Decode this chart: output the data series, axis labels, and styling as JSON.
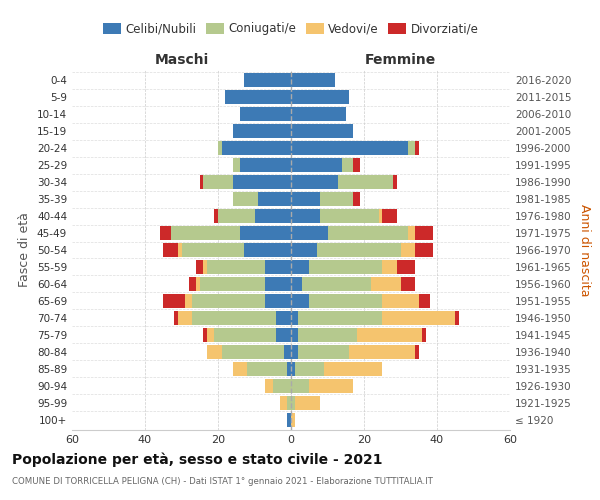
{
  "age_groups": [
    "100+",
    "95-99",
    "90-94",
    "85-89",
    "80-84",
    "75-79",
    "70-74",
    "65-69",
    "60-64",
    "55-59",
    "50-54",
    "45-49",
    "40-44",
    "35-39",
    "30-34",
    "25-29",
    "20-24",
    "15-19",
    "10-14",
    "5-9",
    "0-4"
  ],
  "birth_years": [
    "≤ 1920",
    "1921-1925",
    "1926-1930",
    "1931-1935",
    "1936-1940",
    "1941-1945",
    "1946-1950",
    "1951-1955",
    "1956-1960",
    "1961-1965",
    "1966-1970",
    "1971-1975",
    "1976-1980",
    "1981-1985",
    "1986-1990",
    "1991-1995",
    "1996-2000",
    "2001-2005",
    "2006-2010",
    "2011-2015",
    "2016-2020"
  ],
  "males": {
    "celibi": [
      1,
      0,
      0,
      1,
      2,
      4,
      4,
      7,
      7,
      7,
      13,
      14,
      10,
      9,
      16,
      14,
      19,
      16,
      14,
      18,
      13
    ],
    "coniugati": [
      0,
      1,
      5,
      11,
      17,
      17,
      23,
      20,
      18,
      16,
      17,
      19,
      10,
      7,
      8,
      2,
      1,
      0,
      0,
      0,
      0
    ],
    "vedovi": [
      0,
      2,
      2,
      4,
      4,
      2,
      4,
      2,
      1,
      1,
      1,
      0,
      0,
      0,
      0,
      0,
      0,
      0,
      0,
      0,
      0
    ],
    "divorziati": [
      0,
      0,
      0,
      0,
      0,
      1,
      1,
      6,
      2,
      2,
      4,
      3,
      1,
      0,
      1,
      0,
      0,
      0,
      0,
      0,
      0
    ]
  },
  "females": {
    "nubili": [
      0,
      0,
      0,
      1,
      2,
      2,
      2,
      5,
      3,
      5,
      7,
      10,
      8,
      8,
      13,
      14,
      32,
      17,
      15,
      16,
      12
    ],
    "coniugate": [
      0,
      1,
      5,
      8,
      14,
      16,
      23,
      20,
      19,
      20,
      23,
      22,
      16,
      9,
      15,
      3,
      2,
      0,
      0,
      0,
      0
    ],
    "vedove": [
      1,
      7,
      12,
      16,
      18,
      18,
      20,
      10,
      8,
      4,
      4,
      2,
      1,
      0,
      0,
      0,
      0,
      0,
      0,
      0,
      0
    ],
    "divorziate": [
      0,
      0,
      0,
      0,
      1,
      1,
      1,
      3,
      4,
      5,
      5,
      5,
      4,
      2,
      1,
      2,
      1,
      0,
      0,
      0,
      0
    ]
  },
  "colors": {
    "celibi": "#3d7ab5",
    "coniugati": "#b5c98e",
    "vedovi": "#f5c46e",
    "divorziati": "#cc2929"
  },
  "xlim": 60,
  "title": "Popolazione per età, sesso e stato civile - 2021",
  "subtitle": "COMUNE DI TORRICELLA PELIGNA (CH) - Dati ISTAT 1° gennaio 2021 - Elaborazione TUTTITALIA.IT",
  "ylabel_left": "Fasce di età",
  "ylabel_right": "Anni di nascita",
  "label_maschi": "Maschi",
  "label_femmine": "Femmine",
  "legend_labels": [
    "Celibi/Nubili",
    "Coniugati/e",
    "Vedovi/e",
    "Divorziati/e"
  ],
  "background_color": "#ffffff",
  "grid_color": "#cccccc"
}
